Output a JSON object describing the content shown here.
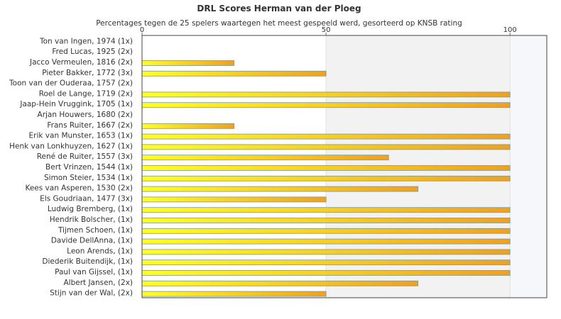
{
  "chart_data": {
    "type": "bar",
    "orientation": "horizontal",
    "title": "DRL Scores Herman van der Ploeg",
    "subtitle": "Percentages tegen de 25 spelers waartegen het meest gespeeld werd, gesorteerd op KNSB rating",
    "categories": [
      "Ton van Ingen, 1974 (1x)",
      "Fred Lucas, 1925 (2x)",
      "Jacco Vermeulen, 1816 (2x)",
      "Pieter Bakker, 1772 (3x)",
      "Toon van der Ouderaa, 1757 (2x)",
      "Roel de Lange, 1719 (2x)",
      "Jaap-Hein Vruggink, 1705 (1x)",
      "Arjan Houwers, 1680 (2x)",
      "Frans Ruiter, 1667 (2x)",
      "Erik van Munster, 1653 (1x)",
      "Henk van Lonkhuyzen, 1627 (1x)",
      "René de Ruiter, 1557 (3x)",
      "Bert Vrinzen, 1544 (1x)",
      "Simon Steier, 1534 (1x)",
      "Kees van Asperen, 1530 (2x)",
      "Els Goudriaan, 1477 (3x)",
      "Ludwig Bremberg,  (1x)",
      "Hendrik Bolscher,  (1x)",
      "Tijmen Schoen,  (1x)",
      "Davide DellAnna,  (1x)",
      "Leon Arends,  (1x)",
      "Diederik Buitendijk,  (1x)",
      "Paul van Gijssel,  (1x)",
      "Albert Jansen,  (2x)",
      "Stijn van der Wal,  (2x)"
    ],
    "values": [
      0,
      0,
      25,
      50,
      0,
      100,
      100,
      0,
      25,
      100,
      100,
      67,
      100,
      100,
      75,
      50,
      100,
      100,
      100,
      100,
      100,
      100,
      100,
      75,
      50
    ],
    "xlim": [
      0,
      110
    ],
    "ticks": [
      {
        "value": 0,
        "label": "0"
      },
      {
        "value": 50,
        "label": "50"
      },
      {
        "value": 100,
        "label": "100"
      }
    ],
    "x_axis_position": "top",
    "grid": true,
    "bar_gradient": [
      "#ffff22",
      "#f0a020"
    ],
    "bar_stroke": "#7a9a9a",
    "band_color": "#f2f2f2",
    "band_color_alt": "#f6f7fa"
  }
}
